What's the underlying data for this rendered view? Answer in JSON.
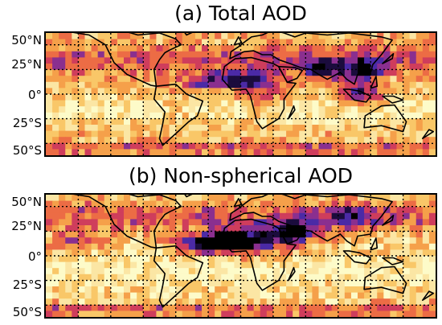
{
  "panels": [
    {
      "title": "(a) Total AOD",
      "lat_labels": [
        "50°N",
        "25°N",
        "0°",
        "25°S",
        "50°S"
      ]
    },
    {
      "title": "(b) Non-spherical AOD",
      "lat_labels": [
        "50°N",
        "25°N",
        "0°",
        "25°S",
        "50°S"
      ]
    }
  ],
  "colormap": [
    "#fdfbc9",
    "#fbe6a4",
    "#f9c768",
    "#f5a04a",
    "#ec6c45",
    "#cf3d5c",
    "#8a2f8f",
    "#4b2aa6",
    "#1b0c3d",
    "#000000"
  ]
}
